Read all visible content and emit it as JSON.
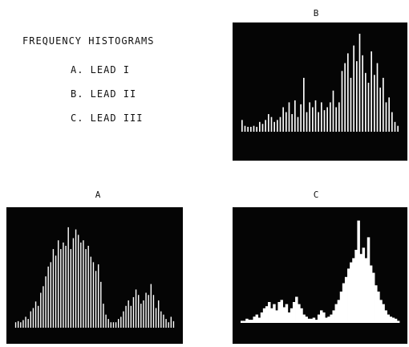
{
  "legend": {
    "title": "FREQUENCY HISTOGRAMS",
    "items": [
      "A. LEAD I",
      "B. LEAD II",
      "C. LEAD III"
    ]
  },
  "colors": {
    "background": "#ffffff",
    "panel": "#050505",
    "bars": "#ffffff"
  },
  "chart_data": [
    {
      "type": "bar",
      "title": "A",
      "style": "separated-vertical-lines",
      "values": [
        0.05,
        0.06,
        0.05,
        0.07,
        0.1,
        0.08,
        0.15,
        0.18,
        0.24,
        0.2,
        0.32,
        0.38,
        0.47,
        0.56,
        0.6,
        0.72,
        0.66,
        0.8,
        0.72,
        0.78,
        0.75,
        0.92,
        0.72,
        0.82,
        0.9,
        0.85,
        0.78,
        0.8,
        0.72,
        0.75,
        0.65,
        0.6,
        0.52,
        0.58,
        0.42,
        0.22,
        0.12,
        0.08,
        0.05,
        0.05,
        0.05,
        0.08,
        0.1,
        0.15,
        0.2,
        0.25,
        0.2,
        0.28,
        0.35,
        0.3,
        0.22,
        0.25,
        0.32,
        0.3,
        0.4,
        0.3,
        0.18,
        0.25,
        0.15,
        0.12,
        0.08,
        0.05,
        0.1,
        0.06
      ]
    },
    {
      "type": "bar",
      "title": "B",
      "style": "separated-vertical-lines",
      "values": [
        0.12,
        0.06,
        0.05,
        0.05,
        0.06,
        0.05,
        0.1,
        0.08,
        0.12,
        0.18,
        0.15,
        0.1,
        0.12,
        0.15,
        0.25,
        0.2,
        0.3,
        0.18,
        0.32,
        0.15,
        0.28,
        0.55,
        0.2,
        0.3,
        0.25,
        0.32,
        0.2,
        0.3,
        0.22,
        0.25,
        0.3,
        0.42,
        0.25,
        0.3,
        0.62,
        0.7,
        0.8,
        0.55,
        0.88,
        0.72,
        1.0,
        0.78,
        0.6,
        0.5,
        0.82,
        0.58,
        0.7,
        0.45,
        0.55,
        0.3,
        0.35,
        0.2,
        0.1,
        0.06
      ]
    },
    {
      "type": "bar",
      "title": "C",
      "style": "adjacent-stepped-bars",
      "values": [
        0.02,
        0.02,
        0.04,
        0.03,
        0.03,
        0.06,
        0.08,
        0.05,
        0.1,
        0.14,
        0.16,
        0.2,
        0.14,
        0.18,
        0.12,
        0.2,
        0.22,
        0.15,
        0.18,
        0.1,
        0.14,
        0.2,
        0.25,
        0.18,
        0.14,
        0.08,
        0.06,
        0.04,
        0.04,
        0.05,
        0.03,
        0.08,
        0.12,
        0.1,
        0.05,
        0.06,
        0.08,
        0.12,
        0.18,
        0.22,
        0.3,
        0.38,
        0.44,
        0.52,
        0.58,
        0.62,
        0.7,
        0.98,
        0.66,
        0.72,
        0.62,
        0.82,
        0.55,
        0.48,
        0.36,
        0.3,
        0.22,
        0.18,
        0.12,
        0.08,
        0.06,
        0.05,
        0.04,
        0.02
      ]
    }
  ]
}
